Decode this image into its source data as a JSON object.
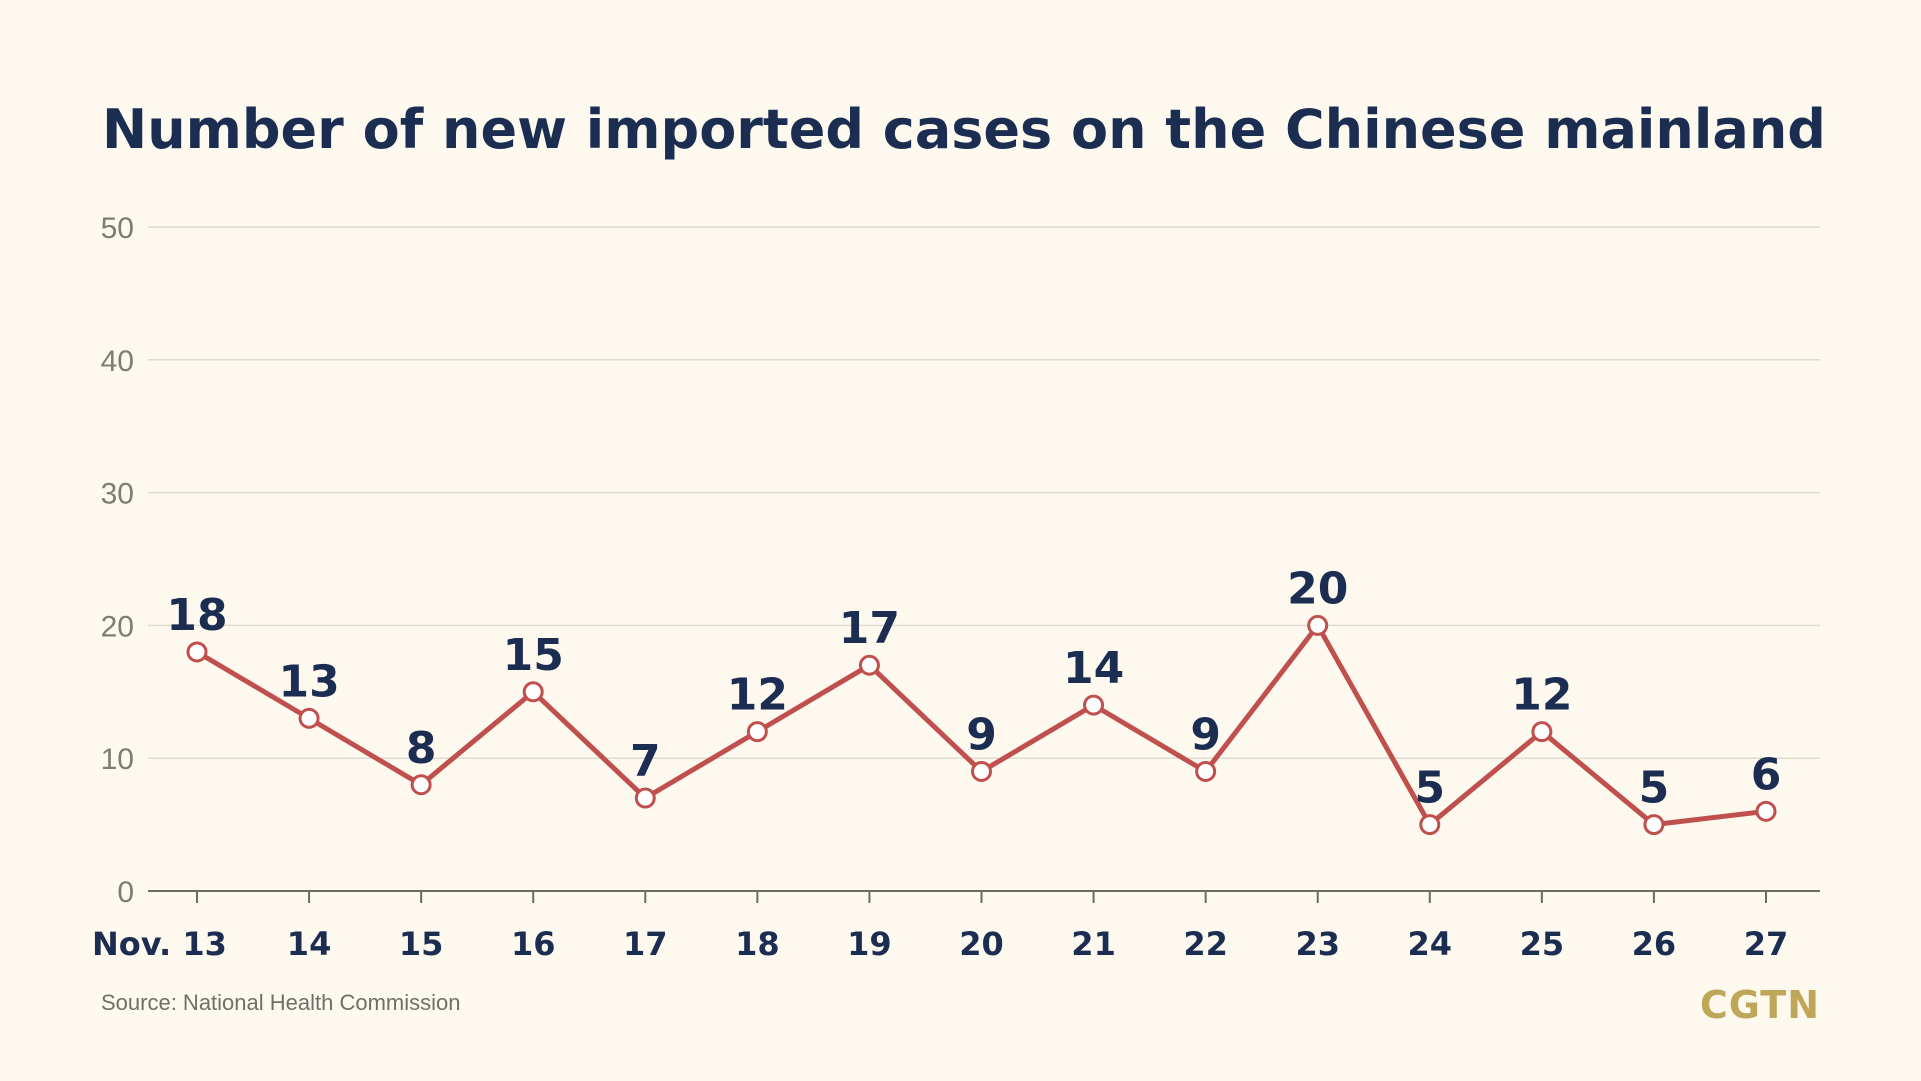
{
  "chart_data": {
    "type": "line",
    "title": "Number of new imported cases on the Chinese mainland",
    "categories": [
      "Nov. 13",
      "14",
      "15",
      "16",
      "17",
      "18",
      "19",
      "20",
      "21",
      "22",
      "23",
      "24",
      "25",
      "26",
      "27"
    ],
    "values": [
      18,
      13,
      8,
      15,
      7,
      12,
      17,
      9,
      14,
      9,
      20,
      5,
      12,
      5,
      6
    ],
    "data_labels": [
      "18",
      "13",
      "8",
      "15",
      "7",
      "12",
      "17",
      "9",
      "14",
      "9",
      "20",
      "5",
      "12",
      "5",
      "6"
    ],
    "yticks": [
      "0",
      "10",
      "20",
      "30",
      "40",
      "50"
    ],
    "ylim": [
      0,
      50
    ],
    "grid": true,
    "line_color": "#c0504d",
    "text_color": "#1c2d52"
  },
  "footer": {
    "source": "Source: National Health Commission",
    "brand": "CGTN"
  },
  "colors": {
    "background": "#fdf9ef",
    "brand": "#bfa75a"
  }
}
